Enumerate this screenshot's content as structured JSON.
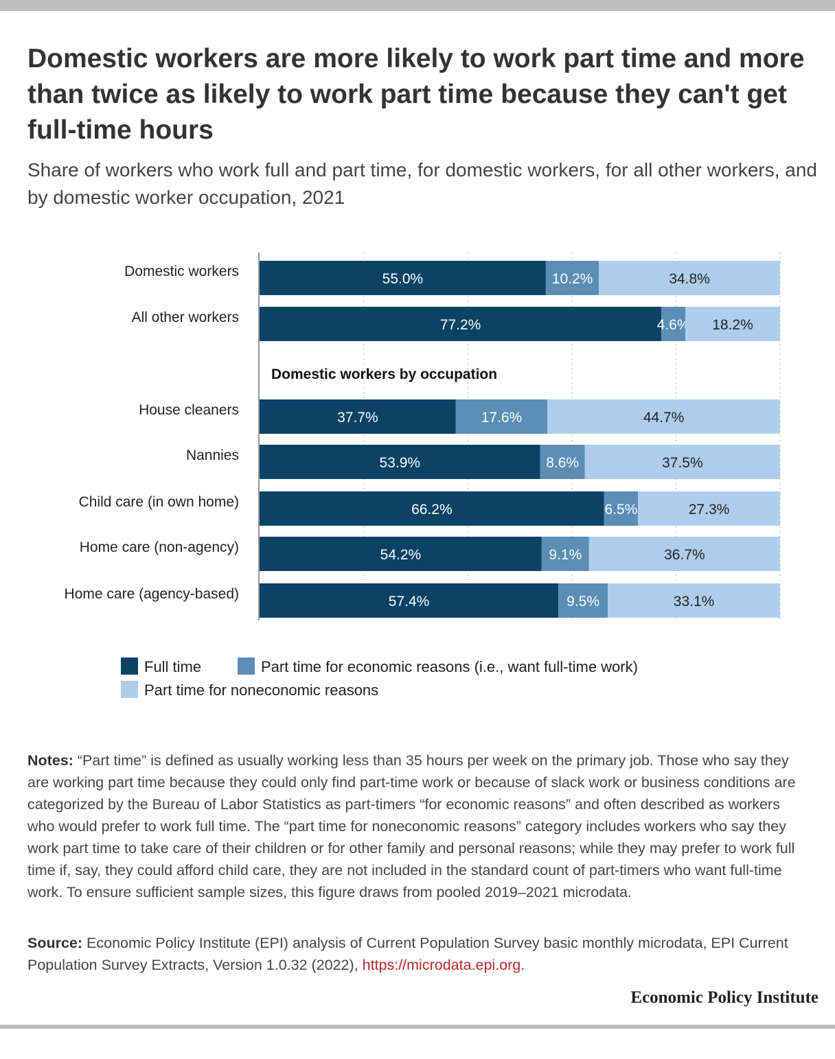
{
  "title": "Domestic workers are more likely to work part time and more than twice as likely to work part time because they can't get full-time hours",
  "subtitle": "Share of workers who work full and part time, for domestic workers, for all other workers, and by domestic worker occupation, 2021",
  "chart_data": {
    "type": "bar",
    "orientation": "horizontal",
    "stacked": true,
    "value_suffix": "%",
    "xlim": [
      0,
      100
    ],
    "grid": true,
    "legend_placement": "bottom",
    "group_label": "Domestic workers by occupation",
    "categories": [
      "Domestic workers",
      "All other workers",
      "House cleaners",
      "Nannies",
      "Child care (in own home)",
      "Home care (non-agency)",
      "Home care (agency-based)"
    ],
    "series": [
      {
        "name": "Full time",
        "color": "#0b4266",
        "label_color": "#ffffff",
        "values": [
          55.0,
          77.2,
          37.7,
          53.9,
          66.2,
          54.2,
          57.4
        ]
      },
      {
        "name": "Part time for economic reasons (i.e., want full-time work)",
        "color": "#5b8db5",
        "label_color": "#ffffff",
        "values": [
          10.2,
          4.6,
          17.6,
          8.6,
          6.5,
          9.1,
          9.5
        ]
      },
      {
        "name": "Part time for noneconomic reasons",
        "color": "#aecdec",
        "label_color": "#222222",
        "values": [
          34.8,
          18.2,
          44.7,
          37.5,
          27.3,
          36.7,
          33.1
        ]
      }
    ]
  },
  "notes": {
    "lead": "Notes:",
    "text": " “Part time” is defined as usually working less than 35 hours per week on the primary job. Those who say they are working part time because they could only find part-time work or because of slack work or business conditions are categorized by the Bureau of Labor Statistics as part-timers “for economic reasons” and often described as workers who would prefer to work full time. The “part time for noneconomic reasons” category includes workers who say they work part time to take care of their children or for other family and personal reasons; while they may prefer to work full time if, say, they could afford child care, they are not included in the standard count of part-timers who want full-time work. To ensure sufficient sample sizes, this figure draws from pooled 2019–2021 microdata."
  },
  "source": {
    "lead": "Source:",
    "text": " Economic Policy Institute (EPI) analysis of Current Population Survey basic monthly microdata, EPI Current Population Survey Extracts, Version 1.0.32 (2022), ",
    "link": "https://microdata.epi.org."
  },
  "brand": "Economic Policy Institute"
}
